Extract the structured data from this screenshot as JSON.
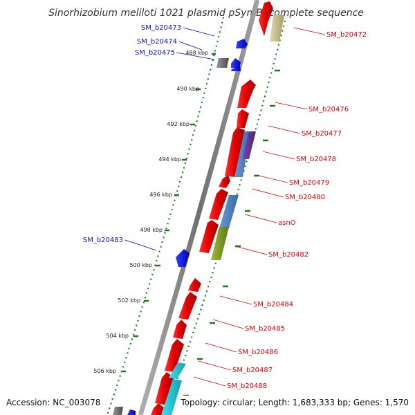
{
  "title": "Sinorhizobium meliloti 1021 plasmid pSymB, complete sequence",
  "accession": "Accession: NC_003078",
  "topology": "Topology: circular; Length: 1,683,333 bp; Genes: 1,570",
  "ruler_labels": [
    "488 kbp",
    "490 kbp",
    "492 kbp",
    "494 kbp",
    "496 kbp",
    "498 kbp",
    "500 kbp",
    "502 kbp",
    "504 kbp",
    "506 kbp"
  ],
  "reverse_genes": [
    "SM_b20473",
    "SM_b20474",
    "SM_b20475",
    "SM_b20483"
  ],
  "forward_genes": [
    "SM_b20472",
    "SM_b20476",
    "SM_b20477",
    "SM_b20478",
    "SM_b20479",
    "SM_b20480",
    "asnO",
    "SM_b20482",
    "SM_b20484",
    "SM_b20485",
    "SM_b20486",
    "SM_b20487",
    "SM_b20488"
  ],
  "colors": {
    "backbone": "#808080",
    "forward_cds": "#ff0000",
    "reverse_cds": "#0000ff",
    "gc_skew": "#1a7a1a",
    "cog_blue": "#4f86c6",
    "cog_olive": "#7a9a2a",
    "cog_cyan": "#22c8d8",
    "cog_purple": "#6a3a9a",
    "cog_tan": "#c8bd8a",
    "cog_grey": "#707070"
  }
}
